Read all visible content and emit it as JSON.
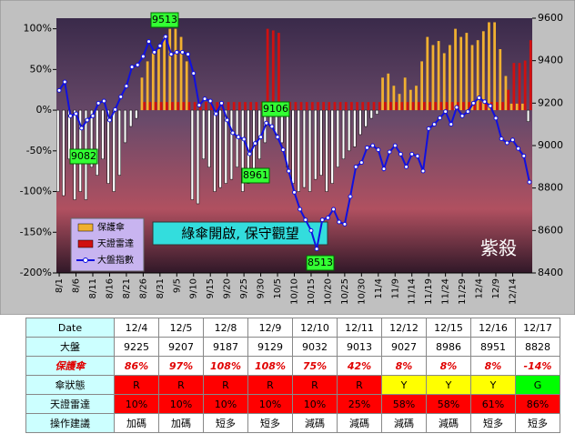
{
  "chart_data": {
    "type": "bar_line",
    "categories": [
      "8/1",
      null,
      null,
      "8/6",
      null,
      null,
      "8/11",
      null,
      null,
      "8/16",
      null,
      null,
      "8/21",
      null,
      null,
      "8/26",
      null,
      null,
      "8/31",
      null,
      null,
      "9/5",
      null,
      null,
      "9/10",
      null,
      null,
      "9/15",
      null,
      null,
      "9/20",
      null,
      null,
      "9/25",
      null,
      null,
      "9/30",
      null,
      null,
      "10/5",
      null,
      null,
      "10/10",
      null,
      null,
      "10/15",
      null,
      null,
      "10/20",
      null,
      null,
      "10/25",
      null,
      null,
      "10/30",
      null,
      null,
      "11/4",
      null,
      null,
      "11/9",
      null,
      null,
      "11/14",
      null,
      null,
      "11/19",
      null,
      null,
      "11/24",
      null,
      null,
      "11/29",
      null,
      null,
      "12/4",
      null,
      null,
      "12/9",
      null,
      null,
      "12/14",
      null,
      null,
      null
    ],
    "series": [
      {
        "name": "保護傘",
        "color": "#f0b030",
        "negative_color": "#ffffff",
        "values": [
          -100,
          -105,
          -60,
          -110,
          -100,
          -110,
          -70,
          -80,
          -60,
          -90,
          -100,
          -80,
          -40,
          -20,
          -10,
          40,
          60,
          70,
          75,
          90,
          100,
          100,
          90,
          60,
          -110,
          -115,
          -60,
          -70,
          -100,
          -95,
          -90,
          -85,
          -70,
          -100,
          -90,
          -75,
          -60,
          -40,
          -20,
          -30,
          -40,
          -70,
          -90,
          -100,
          -95,
          -100,
          -85,
          -80,
          -100,
          -90,
          -70,
          -60,
          -50,
          -45,
          -30,
          -20,
          -10,
          -5,
          40,
          45,
          30,
          20,
          40,
          25,
          30,
          60,
          90,
          80,
          85,
          70,
          80,
          100,
          90,
          95,
          80,
          86,
          97,
          108,
          108,
          75,
          42,
          8,
          8,
          8,
          -14
        ]
      },
      {
        "name": "天證雷達",
        "color": "#d01010",
        "values": [
          0,
          0,
          0,
          0,
          0,
          0,
          0,
          0,
          0,
          0,
          0,
          0,
          0,
          0,
          0,
          10,
          10,
          10,
          10,
          10,
          10,
          10,
          10,
          10,
          10,
          10,
          10,
          10,
          10,
          10,
          10,
          10,
          10,
          10,
          10,
          10,
          10,
          100,
          98,
          95,
          10,
          10,
          10,
          10,
          10,
          10,
          10,
          10,
          10,
          10,
          10,
          10,
          10,
          10,
          10,
          10,
          10,
          10,
          10,
          10,
          10,
          10,
          10,
          10,
          10,
          10,
          10,
          10,
          10,
          10,
          10,
          10,
          10,
          10,
          10,
          10,
          10,
          10,
          10,
          10,
          25,
          58,
          58,
          61,
          86
        ]
      },
      {
        "name": "大盤指數",
        "color": "#1010e0",
        "axis": "y2",
        "values": [
          9260,
          9300,
          9140,
          9150,
          9082,
          9120,
          9140,
          9200,
          9210,
          9120,
          9170,
          9230,
          9280,
          9370,
          9380,
          9420,
          9490,
          9440,
          9470,
          9513,
          9430,
          9440,
          9440,
          9430,
          9340,
          9190,
          9220,
          9210,
          9150,
          9200,
          9120,
          9060,
          9040,
          9030,
          8961,
          9010,
          9040,
          9106,
          9090,
          9040,
          8980,
          8880,
          8780,
          8700,
          8650,
          8600,
          8513,
          8650,
          8660,
          8700,
          8640,
          8630,
          8760,
          8900,
          8920,
          8990,
          9000,
          8980,
          8890,
          8970,
          9000,
          8960,
          8900,
          8960,
          8950,
          8880,
          9080,
          9100,
          9130,
          9160,
          9100,
          9180,
          9140,
          9160,
          9200,
          9225,
          9207,
          9187,
          9129,
          9032,
          9013,
          9027,
          8986,
          8951,
          8828
        ]
      }
    ],
    "ylim": [
      -200,
      113
    ],
    "yticks": [
      {
        "value": 100,
        "label": "100%"
      },
      {
        "value": 50,
        "label": "50%"
      },
      {
        "value": 0,
        "label": "0%"
      },
      {
        "value": -50,
        "label": "-50%"
      },
      {
        "value": -100,
        "label": "-100%"
      },
      {
        "value": -150,
        "label": "-150%"
      },
      {
        "value": -200,
        "label": "-200%"
      }
    ],
    "y2lim": [
      8400,
      9600
    ],
    "y2ticks": [
      9600,
      9400,
      9200,
      9000,
      8800,
      8600,
      8400
    ],
    "annotations": [
      "9513",
      "9106",
      "9082",
      "8961",
      "8513"
    ],
    "banner": "綠傘開啟, 保守觀望",
    "signature": "紫殺"
  },
  "table": {
    "header": [
      "Date",
      "12/4",
      "12/5",
      "12/8",
      "12/9",
      "12/10",
      "12/11",
      "12/12",
      "12/15",
      "12/16",
      "12/17"
    ],
    "rows": [
      [
        "大盤",
        "9225",
        "9207",
        "9187",
        "9129",
        "9032",
        "9013",
        "9027",
        "8986",
        "8951",
        "8828"
      ],
      [
        "保護傘",
        "86%",
        "97%",
        "108%",
        "108%",
        "75%",
        "42%",
        "8%",
        "8%",
        "8%",
        "-14%"
      ],
      [
        "傘狀態",
        "R",
        "R",
        "R",
        "R",
        "R",
        "R",
        "Y",
        "Y",
        "Y",
        "G"
      ],
      [
        "天證雷達",
        "10%",
        "10%",
        "10%",
        "10%",
        "10%",
        "25%",
        "58%",
        "58%",
        "61%",
        "86%"
      ],
      [
        "操作建議",
        "加碼",
        "加碼",
        "短多",
        "短多",
        "減碼",
        "減碼",
        "減碼",
        "減碼",
        "短多",
        "短多"
      ]
    ]
  }
}
